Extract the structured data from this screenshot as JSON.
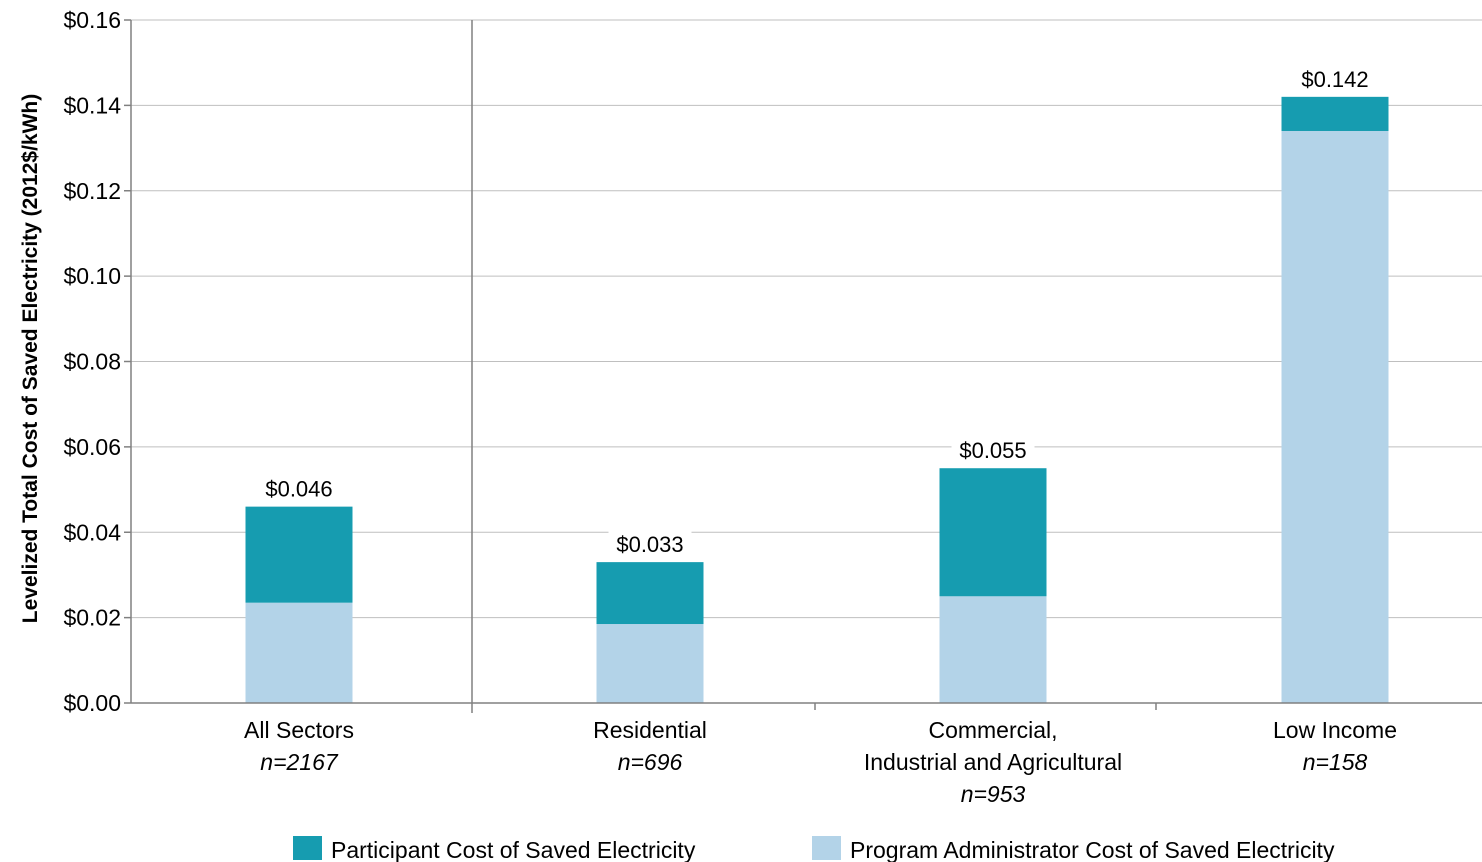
{
  "chart_data": {
    "type": "bar",
    "stacked": true,
    "title": "",
    "xlabel": "",
    "ylabel": "Levelized Total Cost of Saved Electricity (2012$/kWh)",
    "ylim": [
      0,
      0.16
    ],
    "yticks": [
      0,
      0.02,
      0.04,
      0.06,
      0.08,
      0.1,
      0.12,
      0.14,
      0.16
    ],
    "ytick_labels": [
      "$0.00",
      "$0.02",
      "$0.04",
      "$0.06",
      "$0.08",
      "$0.10",
      "$0.12",
      "$0.14",
      "$0.16"
    ],
    "grid": true,
    "legend_position": "bottom",
    "categories": [
      {
        "label_lines": [
          "All Sectors"
        ],
        "n": "n=2167"
      },
      {
        "label_lines": [
          "Residential"
        ],
        "n": "n=696"
      },
      {
        "label_lines": [
          "Commercial,",
          "Industrial and Agricultural"
        ],
        "n": "n=953"
      },
      {
        "label_lines": [
          "Low Income"
        ],
        "n": "n=158"
      }
    ],
    "series": [
      {
        "name": "Program Administrator Cost of Saved Electricity",
        "color": "#b3d3e8",
        "values": [
          0.0235,
          0.0185,
          0.025,
          0.134
        ]
      },
      {
        "name": "Participant Cost of Saved Electricity",
        "color": "#169cb0",
        "values": [
          0.0225,
          0.0145,
          0.03,
          0.008
        ]
      }
    ],
    "totals": [
      0.046,
      0.033,
      0.055,
      0.142
    ],
    "total_labels": [
      "$0.046",
      "$0.033",
      "$0.055",
      "$0.142"
    ],
    "legend_order": [
      "Participant Cost of Saved Electricity",
      "Program Administrator Cost of Saved Electricity"
    ],
    "colors": {
      "axis": "#808080",
      "grid": "#bfbfbf"
    }
  }
}
